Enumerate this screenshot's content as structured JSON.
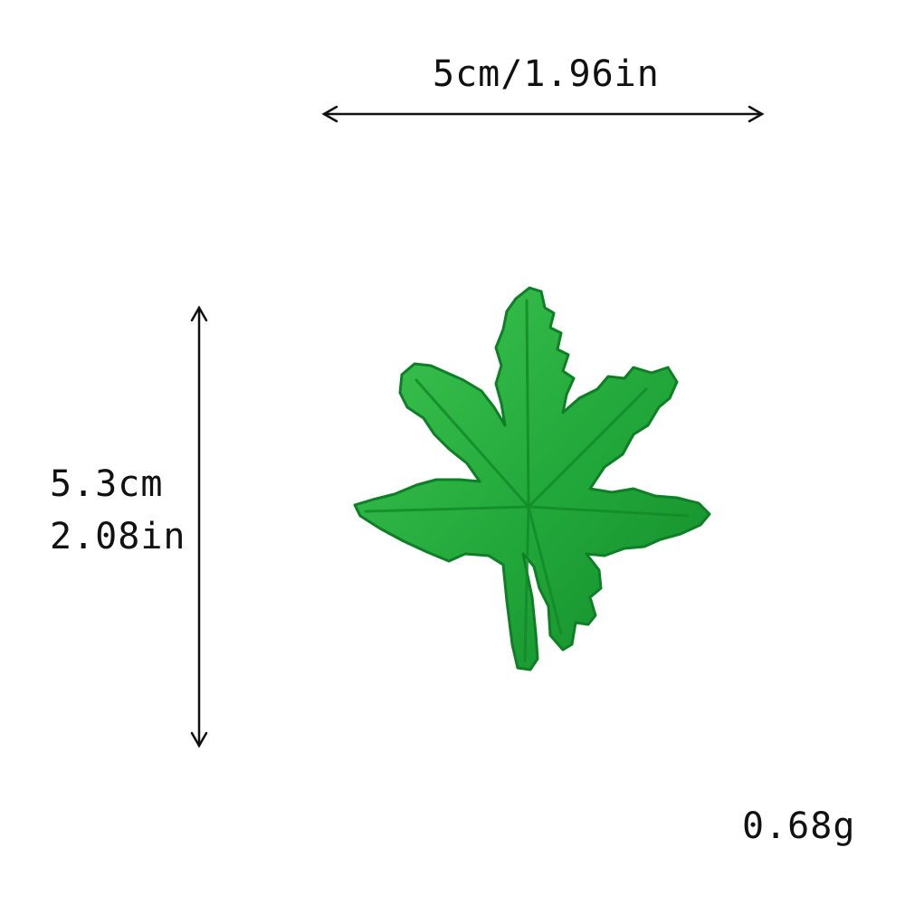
{
  "dimensions": {
    "width_label": "5cm/1.96in",
    "height_cm_label": "5.3cm",
    "height_in_label": "2.08in"
  },
  "weight_label": "0.68g",
  "product": {
    "icon": "leaf-icon",
    "color": "#22a83a",
    "dark_color": "#138a2a",
    "light_color": "#3fc552"
  },
  "arrow_color": "#111111"
}
